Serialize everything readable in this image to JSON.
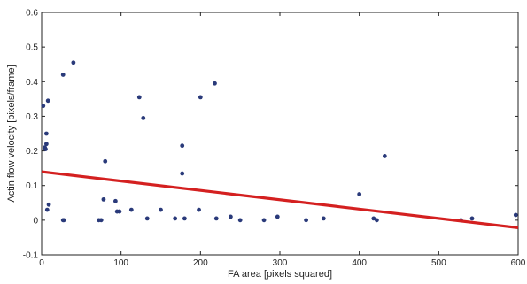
{
  "chart_data": {
    "type": "scatter",
    "xlabel": "FA area [pixels squared]",
    "ylabel": "Actin flow velocity [pixels/frame]",
    "xlim": [
      0,
      600
    ],
    "ylim": [
      -0.1,
      0.6
    ],
    "xticks": [
      0,
      100,
      200,
      300,
      400,
      500,
      600
    ],
    "yticks": [
      -0.1,
      0,
      0.1,
      0.2,
      0.3,
      0.4,
      0.5,
      0.6
    ],
    "grid": false,
    "colors": {
      "points": "#2a3a7a",
      "fit_line": "#d42020",
      "axis": "#222222"
    },
    "series": [
      {
        "points": [
          [
            2,
            0.33
          ],
          [
            4,
            0.21
          ],
          [
            5,
            0.205
          ],
          [
            6,
            0.22
          ],
          [
            6,
            0.25
          ],
          [
            8,
            0.345
          ],
          [
            7,
            0.03
          ],
          [
            9,
            0.045
          ],
          [
            27,
            0.42
          ],
          [
            40,
            0.455
          ],
          [
            27,
            0.0
          ],
          [
            28,
            0.0
          ],
          [
            72,
            0.0
          ],
          [
            75,
            0.0
          ],
          [
            78,
            0.06
          ],
          [
            80,
            0.17
          ],
          [
            93,
            0.055
          ],
          [
            95,
            0.025
          ],
          [
            98,
            0.025
          ],
          [
            113,
            0.03
          ],
          [
            123,
            0.355
          ],
          [
            128,
            0.295
          ],
          [
            133,
            0.005
          ],
          [
            150,
            0.03
          ],
          [
            168,
            0.005
          ],
          [
            177,
            0.215
          ],
          [
            177,
            0.135
          ],
          [
            180,
            0.005
          ],
          [
            200,
            0.355
          ],
          [
            198,
            0.03
          ],
          [
            218,
            0.395
          ],
          [
            220,
            0.005
          ],
          [
            238,
            0.01
          ],
          [
            250,
            0.0
          ],
          [
            280,
            0.0
          ],
          [
            297,
            0.01
          ],
          [
            333,
            0.0
          ],
          [
            355,
            0.005
          ],
          [
            400,
            0.075
          ],
          [
            418,
            0.005
          ],
          [
            422,
            0.0
          ],
          [
            432,
            0.185
          ],
          [
            528,
            0.0
          ],
          [
            542,
            0.005
          ],
          [
            597,
            0.015
          ]
        ]
      }
    ],
    "fit_line": {
      "x": [
        0,
        600
      ],
      "y": [
        0.14,
        -0.022
      ]
    }
  }
}
